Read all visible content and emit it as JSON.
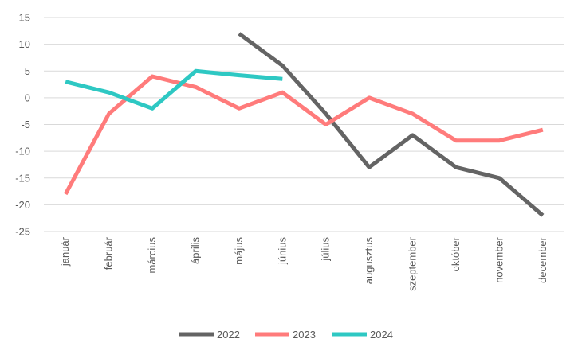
{
  "chart_data": {
    "type": "line",
    "categories": [
      "január",
      "február",
      "március",
      "április",
      "május",
      "június",
      "július",
      "augusztus",
      "szeptember",
      "október",
      "november",
      "december"
    ],
    "ylim": [
      -25,
      15
    ],
    "yticks": [
      15,
      10,
      5,
      0,
      -5,
      -10,
      -15,
      -20,
      -25
    ],
    "grid": true,
    "legend_position": "bottom",
    "series": [
      {
        "name": "2022",
        "color": "#646464",
        "values": [
          null,
          null,
          null,
          null,
          12,
          6,
          -3,
          -13,
          -7,
          -13,
          -15,
          -22
        ]
      },
      {
        "name": "2023",
        "color": "#ff7b7b",
        "values": [
          -18,
          -3,
          4,
          2,
          -2,
          1,
          -5,
          0,
          -3,
          -8,
          -8,
          -6
        ]
      },
      {
        "name": "2024",
        "color": "#2ec8c3",
        "values": [
          3,
          1,
          -2,
          5,
          4.2,
          3.5,
          null,
          null,
          null,
          null,
          null,
          null
        ]
      }
    ]
  }
}
